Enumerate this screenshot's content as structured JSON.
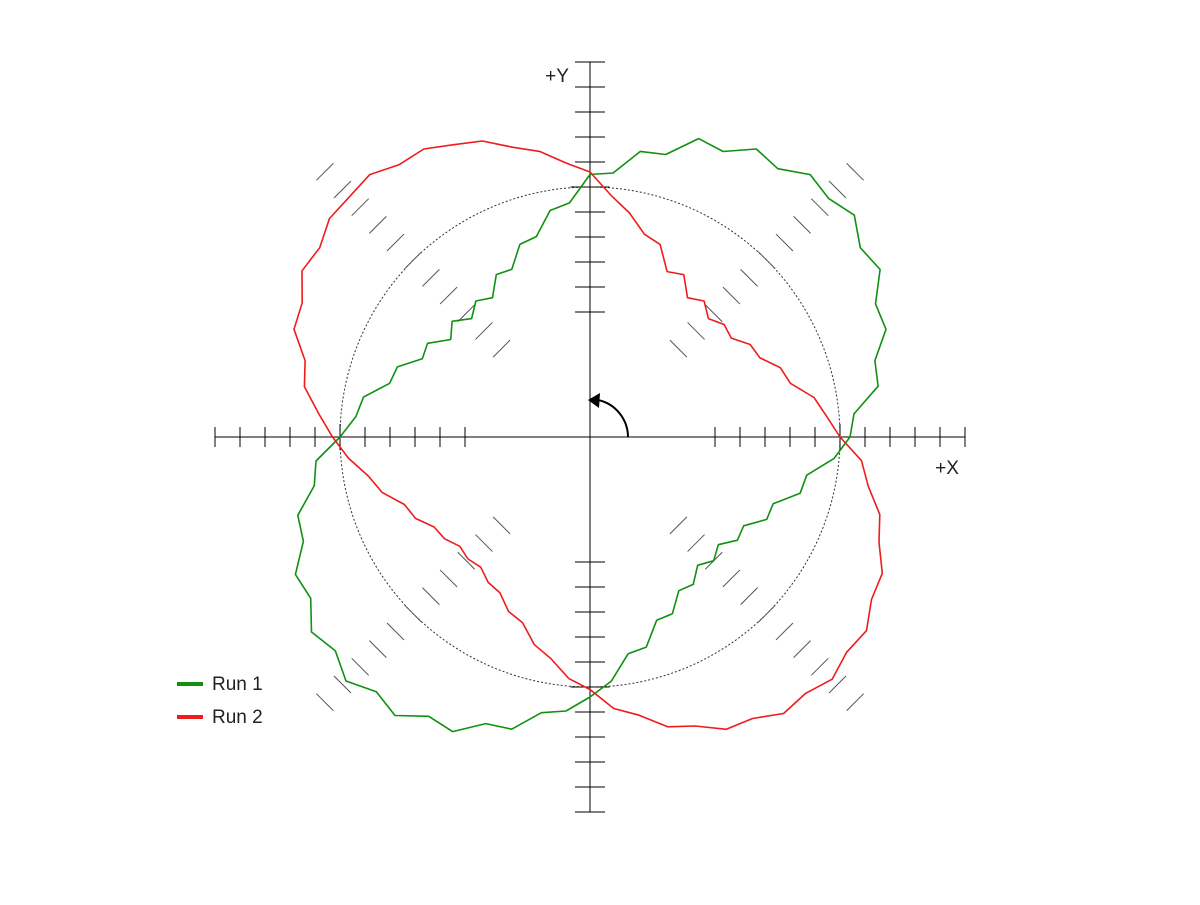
{
  "chart_data": {
    "type": "polar",
    "x_label": "+X",
    "y_label": "+Y",
    "theta": [
      0,
      5,
      10,
      15,
      20,
      25,
      30,
      35,
      40,
      45,
      50,
      55,
      60,
      65,
      70,
      75,
      80,
      85,
      90,
      95,
      100,
      105,
      110,
      115,
      120,
      125,
      130,
      135,
      140,
      145,
      150,
      155,
      160,
      165,
      170,
      175,
      180,
      185,
      190,
      195,
      200,
      205,
      210,
      215,
      220,
      225,
      230,
      235,
      240,
      245,
      250,
      255,
      260,
      265,
      270,
      275,
      280,
      285,
      290,
      295,
      300,
      305,
      310,
      315,
      320,
      325,
      330,
      335,
      340,
      345,
      350,
      355
    ],
    "rlim": [
      0,
      15
    ],
    "rticks": [
      5,
      6,
      7,
      8,
      9,
      10,
      11,
      12,
      13,
      14,
      15
    ],
    "reference_radius": 10,
    "legend": "lower left",
    "series": [
      {
        "name": "Run 1",
        "color": "#119111",
        "values": [
          10.4,
          10.6,
          11.7,
          11.8,
          12.6,
          12.6,
          13.4,
          13.2,
          13.8,
          13.5,
          13.7,
          13.1,
          13.3,
          12.6,
          12.7,
          11.7,
          11.6,
          10.6,
          10.5,
          9.4,
          9.2,
          8.3,
          8.2,
          7.4,
          7.5,
          6.8,
          7.1,
          6.7,
          7.2,
          6.8,
          7.5,
          7.4,
          8.2,
          8.3,
          9.2,
          9.4,
          10.0,
          11.0,
          11.2,
          12.1,
          12.2,
          13.0,
          12.9,
          13.6,
          13.3,
          13.8,
          13.3,
          13.6,
          12.9,
          13.0,
          12.2,
          12.1,
          11.2,
          11.0,
          10.4,
          9.8,
          8.8,
          8.7,
          7.8,
          7.8,
          7.1,
          7.2,
          6.7,
          7.0,
          6.7,
          7.2,
          7.1,
          7.8,
          7.8,
          8.7,
          8.8,
          9.8
        ]
      },
      {
        "name": "Run 2",
        "color": "#ee1c1c",
        "values": [
          10.0,
          9.5,
          9.1,
          8.3,
          8.1,
          7.5,
          7.4,
          6.9,
          7.0,
          6.7,
          7.1,
          6.8,
          7.5,
          7.3,
          8.2,
          8.4,
          9.1,
          9.7,
          10.6,
          11.0,
          11.6,
          12.0,
          12.6,
          12.9,
          13.3,
          13.3,
          13.7,
          13.6,
          13.6,
          13.2,
          13.3,
          12.7,
          12.6,
          11.8,
          11.6,
          10.9,
          10.3,
          9.7,
          9.0,
          8.6,
          7.9,
          7.7,
          7.2,
          7.1,
          6.8,
          6.9,
          6.8,
          7.1,
          7.2,
          7.7,
          7.9,
          8.6,
          9.0,
          9.7,
          10.1,
          10.9,
          11.3,
          12.0,
          12.3,
          12.9,
          13.0,
          13.5,
          13.4,
          13.7,
          13.4,
          13.5,
          13.0,
          12.9,
          12.3,
          12.0,
          11.3,
          10.9
        ]
      }
    ]
  }
}
